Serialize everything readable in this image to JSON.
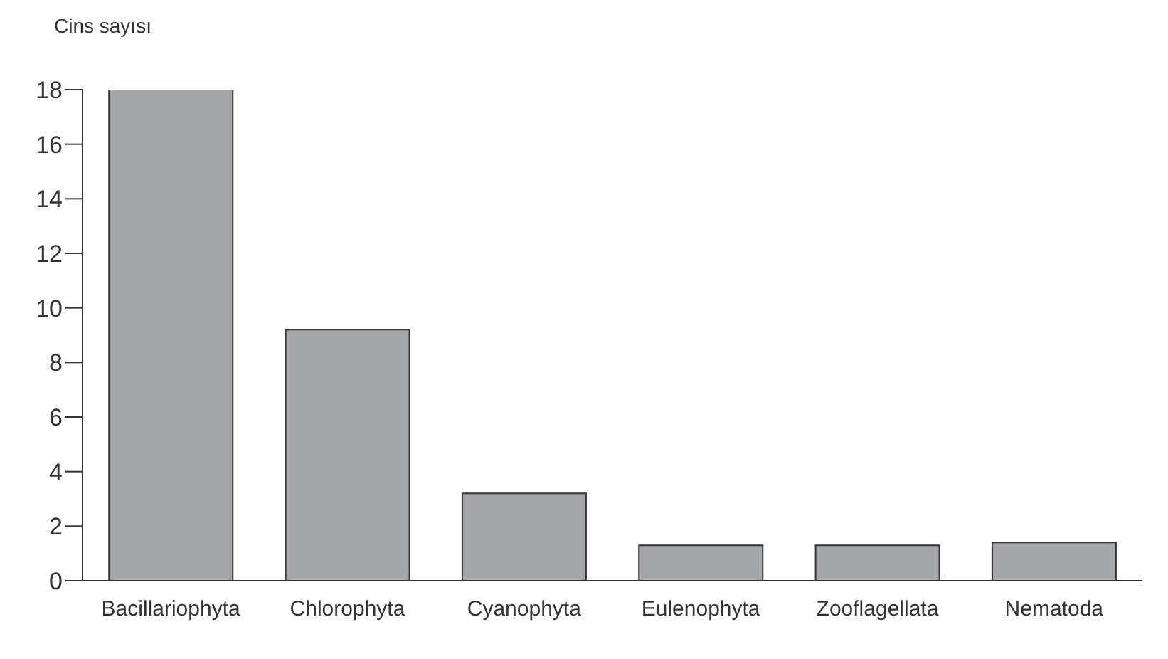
{
  "chart_data": {
    "type": "bar",
    "ylabel": "Cins sayısı",
    "categories": [
      "Bacillariophyta",
      "Chlorophyta",
      "Cyanophyta",
      "Eulenophyta",
      "Zooflagellata",
      "Nematoda"
    ],
    "values": [
      18,
      9.2,
      3.2,
      1.3,
      1.3,
      1.4
    ],
    "color": "#a6a7ab",
    "ylim": [
      0,
      18
    ],
    "yticks": [
      0,
      2,
      4,
      6,
      8,
      10,
      12,
      14,
      16,
      18
    ],
    "grid": false
  }
}
